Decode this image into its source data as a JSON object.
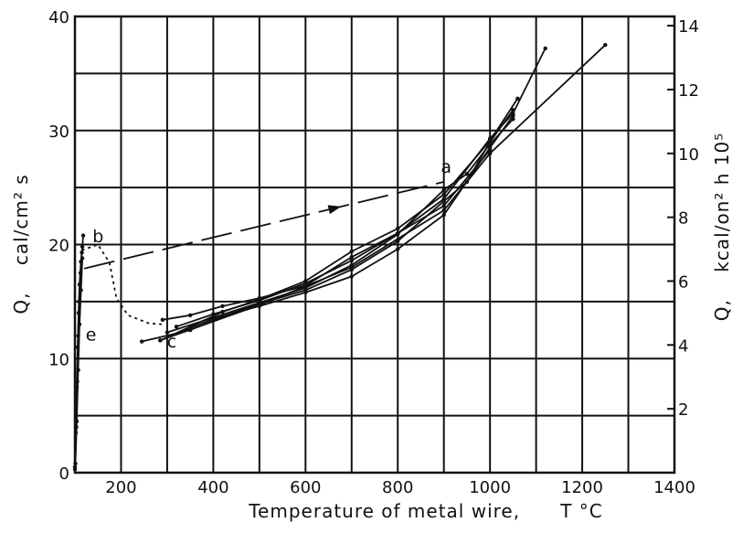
{
  "chart_data": {
    "type": "line",
    "title": "",
    "xlabel": "Temperature of metal wire,      T °C",
    "ylabel": "Q,    cal/cm² s",
    "y2label": "Q,    kcal/on² h 10⁵",
    "xlim": [
      100,
      1400
    ],
    "ylim": [
      0,
      40
    ],
    "y2lim": [
      0,
      14.29
    ],
    "x_ticks": [
      {
        "value": 200,
        "label": "200"
      },
      {
        "value": 400,
        "label": "400"
      },
      {
        "value": 600,
        "label": "600"
      },
      {
        "value": 800,
        "label": "800"
      },
      {
        "value": 1000,
        "label": "1000"
      },
      {
        "value": 1200,
        "label": "1200"
      },
      {
        "value": 1400,
        "label": "1400"
      }
    ],
    "y_ticks": [
      {
        "value": 0,
        "label": "0"
      },
      {
        "value": 10,
        "label": "10"
      },
      {
        "value": 20,
        "label": "20"
      },
      {
        "value": 30,
        "label": "30"
      },
      {
        "value": 40,
        "label": "40"
      }
    ],
    "y2_ticks": [
      {
        "value": 2,
        "label": "2"
      },
      {
        "value": 4,
        "label": "4"
      },
      {
        "value": 6,
        "label": "6"
      },
      {
        "value": 8,
        "label": "8"
      },
      {
        "value": 10,
        "label": "10"
      },
      {
        "value": 12,
        "label": "12"
      },
      {
        "value": 14,
        "label": "14"
      }
    ],
    "grid": true,
    "annotations": [
      {
        "text": "a",
        "x": 905,
        "y": 26.3
      },
      {
        "text": "b",
        "x": 150,
        "y": 20.2
      },
      {
        "text": "c",
        "x": 310,
        "y": 11.0
      },
      {
        "text": "e",
        "x": 135,
        "y": 11.6
      }
    ],
    "series": [
      {
        "style": "solid",
        "points": [
          [
            290,
            13.4
          ],
          [
            350,
            13.8
          ],
          [
            420,
            14.6
          ],
          [
            500,
            15.3
          ],
          [
            600,
            16.4
          ],
          [
            700,
            18.9
          ],
          [
            800,
            21.0
          ],
          [
            900,
            24.0
          ],
          [
            1000,
            29.3
          ],
          [
            1050,
            31.5
          ],
          [
            1120,
            37.2
          ]
        ]
      },
      {
        "style": "solid",
        "points": [
          [
            245,
            11.5
          ],
          [
            350,
            12.5
          ],
          [
            420,
            13.7
          ],
          [
            500,
            14.8
          ],
          [
            600,
            16.0
          ],
          [
            700,
            17.8
          ],
          [
            800,
            20.3
          ],
          [
            900,
            23.8
          ],
          [
            950,
            25.5
          ],
          [
            1000,
            29.0
          ],
          [
            1050,
            31.8
          ]
        ]
      },
      {
        "style": "solid",
        "points": [
          [
            285,
            11.6
          ],
          [
            350,
            12.8
          ],
          [
            420,
            14.1
          ],
          [
            500,
            15.2
          ],
          [
            600,
            16.8
          ],
          [
            700,
            19.4
          ],
          [
            800,
            21.4
          ],
          [
            900,
            24.4
          ],
          [
            1000,
            29.1
          ],
          [
            1060,
            32.8
          ]
        ]
      },
      {
        "style": "solid",
        "points": [
          [
            285,
            11.6
          ],
          [
            400,
            13.5
          ],
          [
            500,
            14.6
          ],
          [
            600,
            15.8
          ],
          [
            700,
            17.2
          ],
          [
            800,
            19.6
          ],
          [
            900,
            22.6
          ],
          [
            1000,
            28.5
          ],
          [
            1050,
            31.3
          ]
        ]
      },
      {
        "style": "solid",
        "points": [
          [
            300,
            12.3
          ],
          [
            400,
            13.6
          ],
          [
            500,
            14.9
          ],
          [
            600,
            16.2
          ],
          [
            700,
            18.2
          ],
          [
            800,
            20.9
          ],
          [
            900,
            24.8
          ],
          [
            950,
            26.2
          ],
          [
            1000,
            28.8
          ],
          [
            1050,
            31.0
          ]
        ]
      },
      {
        "style": "solid",
        "points": [
          [
            320,
            12.8
          ],
          [
            400,
            13.9
          ],
          [
            500,
            15.1
          ],
          [
            600,
            16.6
          ],
          [
            700,
            18.6
          ],
          [
            800,
            21.0
          ],
          [
            900,
            23.4
          ],
          [
            1000,
            28.3
          ]
        ]
      },
      {
        "style": "solid",
        "points": [
          [
            285,
            11.6
          ],
          [
            500,
            14.7
          ],
          [
            700,
            18.0
          ],
          [
            900,
            23.0
          ],
          [
            1000,
            28.0
          ],
          [
            1250,
            37.5
          ]
        ]
      },
      {
        "style": "dashed",
        "points": [
          [
            120,
            17.9
          ],
          [
            900,
            25.5
          ]
        ]
      },
      {
        "style": "dotted",
        "points": [
          [
            115,
            19.5
          ],
          [
            150,
            20.0
          ],
          [
            175,
            18.4
          ],
          [
            190,
            15.3
          ],
          [
            215,
            13.8
          ],
          [
            260,
            13.1
          ],
          [
            290,
            13.0
          ]
        ]
      },
      {
        "style": "solid",
        "points": [
          [
            100,
            0.3
          ],
          [
            102,
            3.5
          ],
          [
            104,
            7.5
          ],
          [
            106,
            11.0
          ],
          [
            108,
            14.0
          ],
          [
            110,
            16.5
          ],
          [
            113,
            18.5
          ],
          [
            116,
            19.8
          ],
          [
            118,
            20.8
          ]
        ]
      },
      {
        "style": "solid",
        "points": [
          [
            100,
            0.5
          ],
          [
            103,
            4.0
          ],
          [
            105,
            8.0
          ],
          [
            107,
            12.0
          ],
          [
            109,
            15.0
          ],
          [
            112,
            17.5
          ],
          [
            115,
            19.3
          ]
        ]
      },
      {
        "style": "solid",
        "points": [
          [
            101,
            0.8
          ],
          [
            104,
            4.5
          ],
          [
            107,
            9.0
          ],
          [
            110,
            13.0
          ],
          [
            113,
            16.0
          ],
          [
            116,
            18.8
          ]
        ]
      }
    ]
  }
}
